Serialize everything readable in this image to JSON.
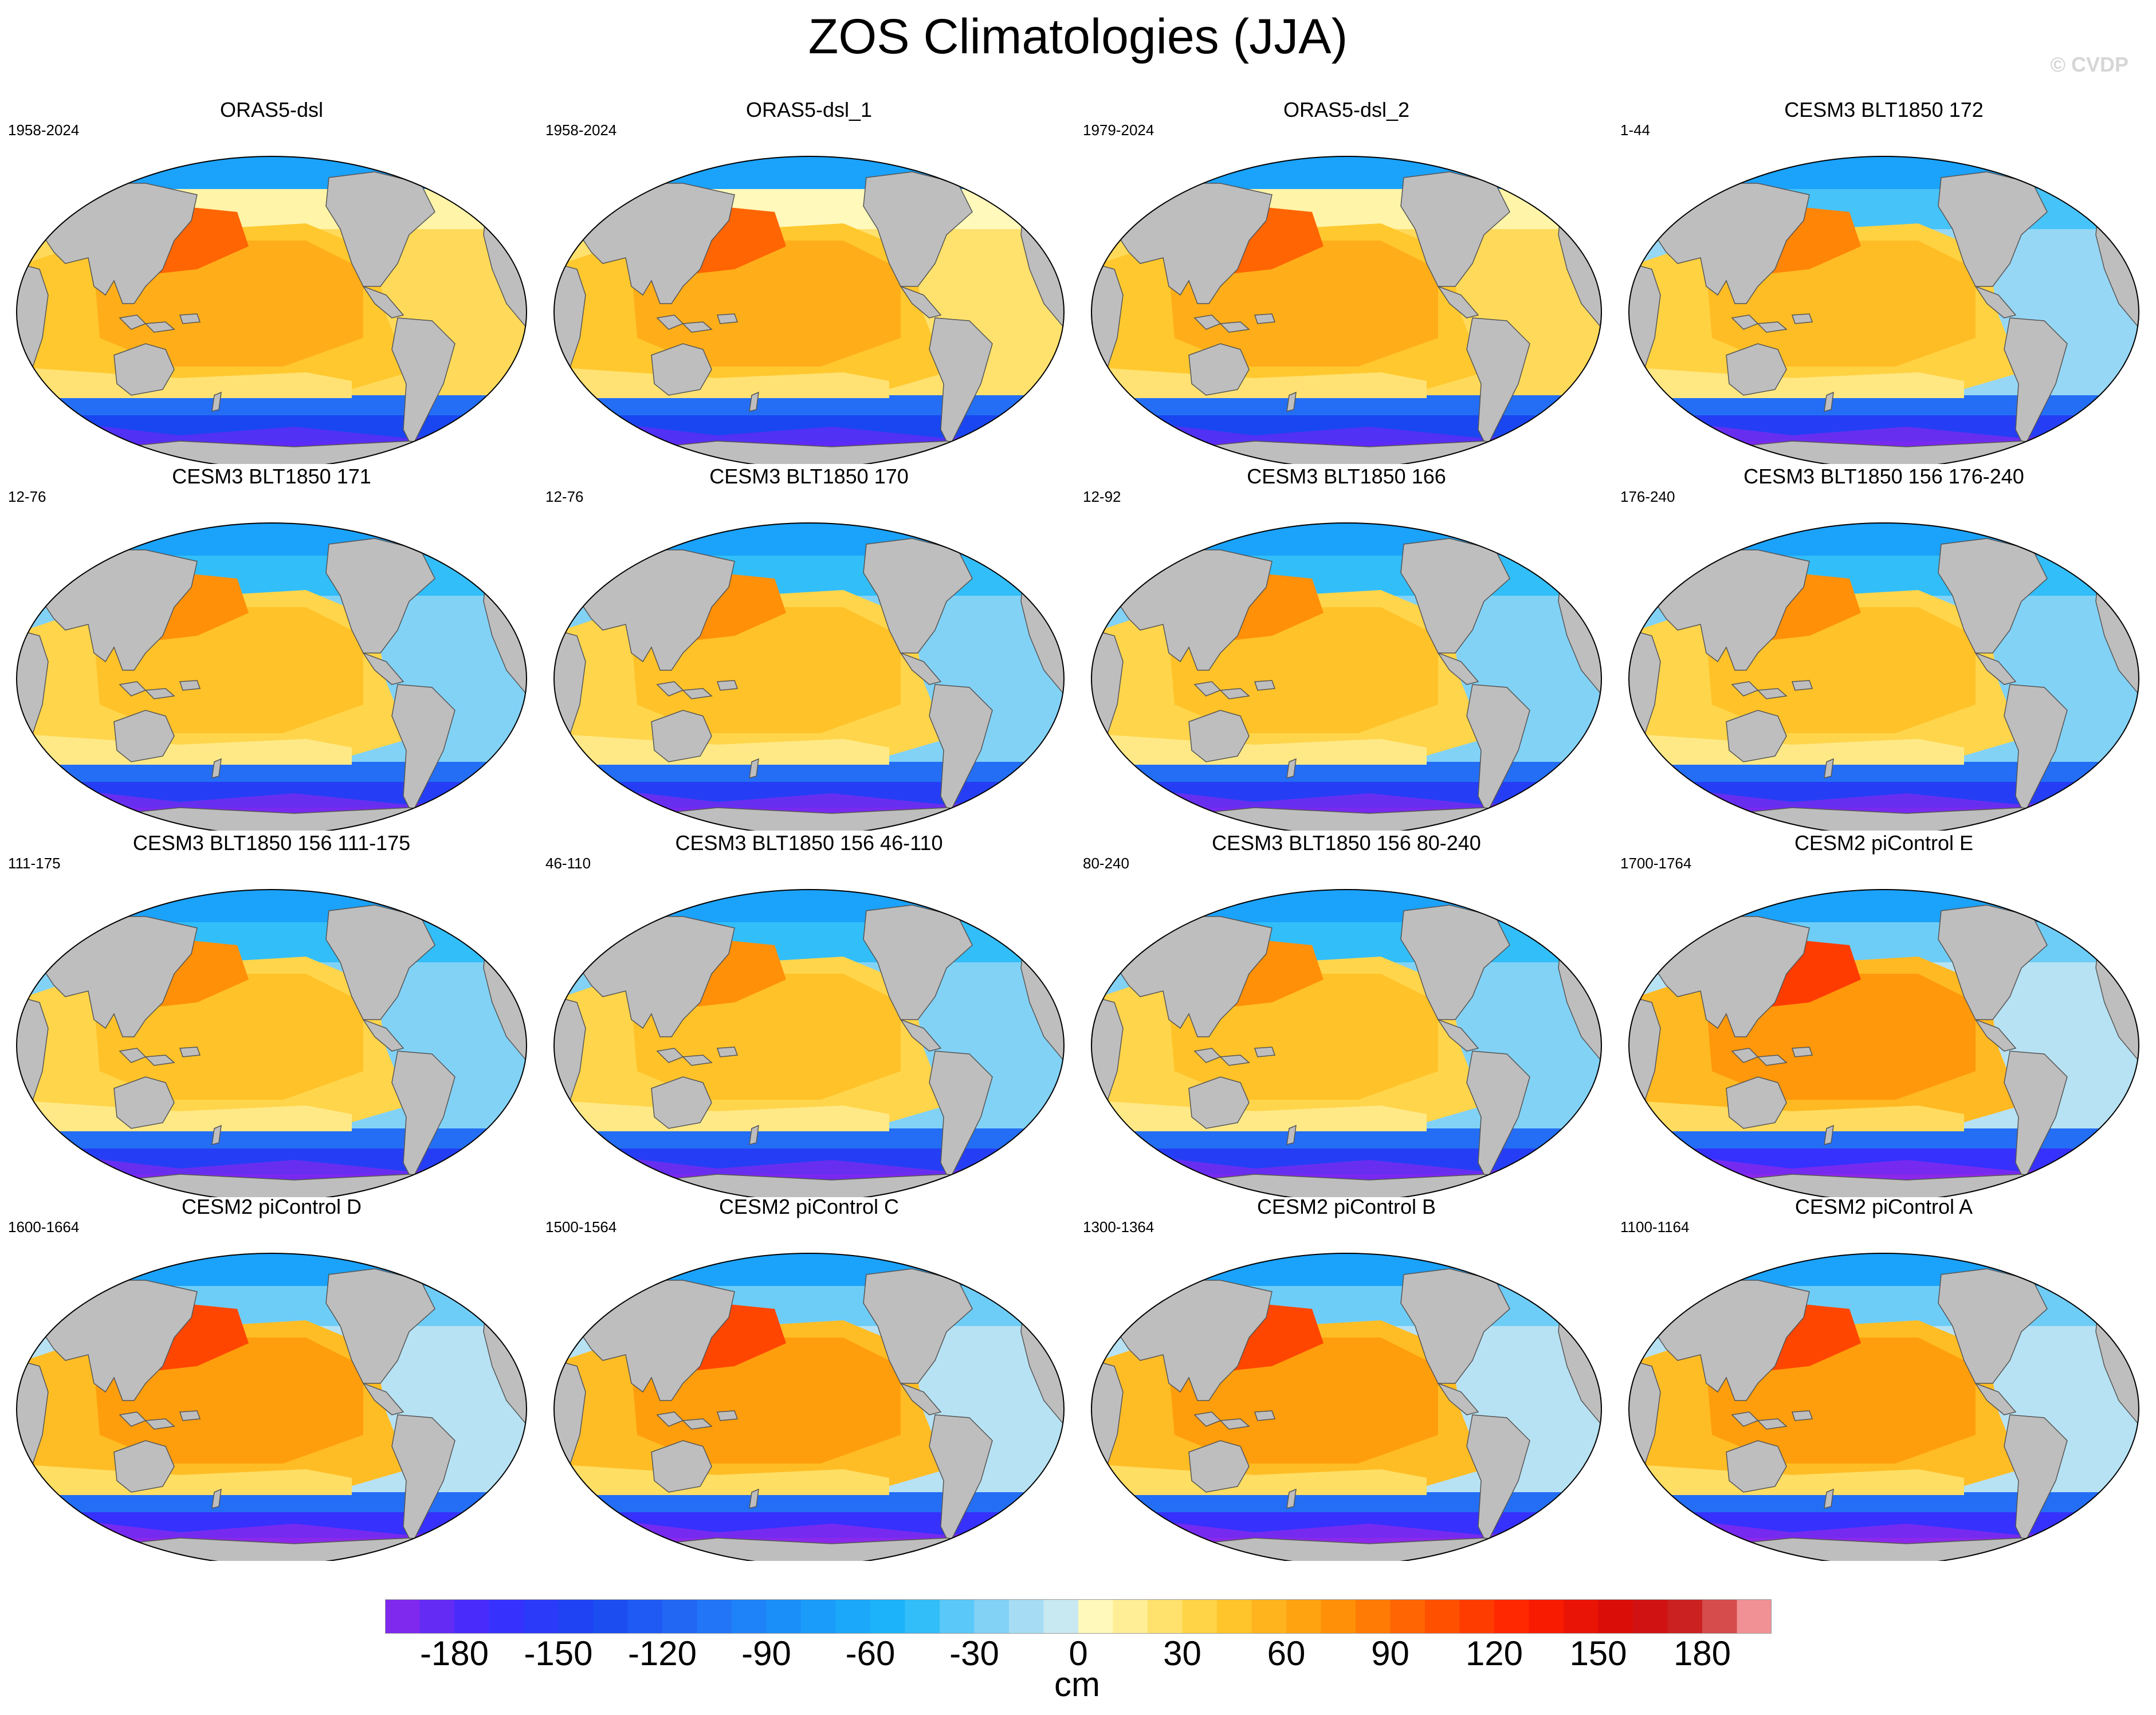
{
  "title": "ZOS Climatologies (JJA)",
  "watermark": "© CVDP",
  "colors": {
    "land": "#bebebe",
    "land_edge": "#555555",
    "ocean_subpolar_north": "#2aa6f5",
    "ocean_atlantic": "#a9d8f5",
    "ocean_pacific_subtropics": "#ffcd3a",
    "ocean_pacific_warmpool": "#ff8a10",
    "ocean_southern": "#3b4ef0",
    "ocean_antarctic_margin": "#6a22e8"
  },
  "chart_data": {
    "type": "heatmap",
    "variable": "ZOS",
    "season": "JJA",
    "projection": "Robinson (Pacific-centred)",
    "units": "cm",
    "panels": [
      {
        "name": "ORAS5-dsl",
        "years": "1958-2024",
        "pacific_max": 95,
        "atlantic": 30,
        "southern_ocean_min": -175
      },
      {
        "name": "ORAS5-dsl_1",
        "years": "1958-2024",
        "pacific_max": 95,
        "atlantic": 25,
        "southern_ocean_min": -175
      },
      {
        "name": "ORAS5-dsl_2",
        "years": "1979-2024",
        "pacific_max": 95,
        "atlantic": 30,
        "southern_ocean_min": -175
      },
      {
        "name": "CESM3 BLT1850 172",
        "years": "1-44",
        "pacific_max": 80,
        "atlantic": -20,
        "southern_ocean_min": -185
      },
      {
        "name": "CESM3 BLT1850 171",
        "years": "12-76",
        "pacific_max": 75,
        "atlantic": -25,
        "southern_ocean_min": -185
      },
      {
        "name": "CESM3 BLT1850 170",
        "years": "12-76",
        "pacific_max": 75,
        "atlantic": -25,
        "southern_ocean_min": -185
      },
      {
        "name": "CESM3 BLT1850 166",
        "years": "12-92",
        "pacific_max": 75,
        "atlantic": -25,
        "southern_ocean_min": -185
      },
      {
        "name": "CESM3 BLT1850 156 176-240",
        "years": "176-240",
        "pacific_max": 75,
        "atlantic": -25,
        "southern_ocean_min": -185
      },
      {
        "name": "CESM3 BLT1850 156 111-175",
        "years": "111-175",
        "pacific_max": 75,
        "atlantic": -25,
        "southern_ocean_min": -185
      },
      {
        "name": "CESM3 BLT1850 156 46-110",
        "years": "46-110",
        "pacific_max": 75,
        "atlantic": -25,
        "southern_ocean_min": -185
      },
      {
        "name": "CESM3 BLT1850 156 80-240",
        "years": "80-240",
        "pacific_max": 75,
        "atlantic": -25,
        "southern_ocean_min": -185
      },
      {
        "name": "CESM2 piControl E",
        "years": "1700-1764",
        "pacific_max": 115,
        "atlantic": -10,
        "southern_ocean_min": -200
      },
      {
        "name": "CESM2 piControl D",
        "years": "1600-1664",
        "pacific_max": 110,
        "atlantic": -10,
        "southern_ocean_min": -200
      },
      {
        "name": "CESM2 piControl C",
        "years": "1500-1564",
        "pacific_max": 110,
        "atlantic": -10,
        "southern_ocean_min": -200
      },
      {
        "name": "CESM2 piControl B",
        "years": "1300-1364",
        "pacific_max": 110,
        "atlantic": -10,
        "southern_ocean_min": -200
      },
      {
        "name": "CESM2 piControl A",
        "years": "1100-1164",
        "pacific_max": 110,
        "atlantic": -10,
        "southern_ocean_min": -200
      }
    ],
    "colorbar": {
      "label": "cm",
      "min": -200,
      "max": 200,
      "step": 10,
      "tick_labels": [
        "-180",
        "-150",
        "-120",
        "-90",
        "-60",
        "-30",
        "0",
        "30",
        "60",
        "90",
        "120",
        "150",
        "180"
      ],
      "tick_values": [
        -180,
        -150,
        -120,
        -90,
        -60,
        -30,
        0,
        30,
        60,
        90,
        120,
        150,
        180
      ]
    }
  }
}
